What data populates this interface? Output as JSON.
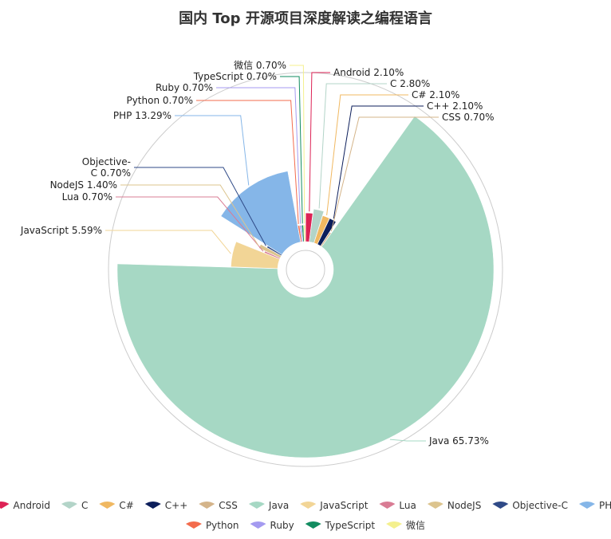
{
  "chart_data": {
    "type": "pie",
    "subtype": "nightingale-rose",
    "title": "国内 Top 开源项目深度解读之编程语言",
    "legend_position": "bottom",
    "slices": [
      {
        "name": "Android",
        "value": 2.1,
        "label": "Android 2.10%",
        "color": "#dd2255"
      },
      {
        "name": "C",
        "value": 2.8,
        "label": "C 2.80%",
        "color": "#b3d4c8"
      },
      {
        "name": "C#",
        "value": 2.1,
        "label": "C# 2.10%",
        "color": "#f0b861"
      },
      {
        "name": "C++",
        "value": 2.1,
        "label": "C++ 2.10%",
        "color": "#0c1e5b"
      },
      {
        "name": "CSS",
        "value": 0.7,
        "label": "CSS 0.70%",
        "color": "#d4b48a"
      },
      {
        "name": "Java",
        "value": 65.73,
        "label": "Java 65.73%",
        "color": "#a6d8c4"
      },
      {
        "name": "JavaScript",
        "value": 5.59,
        "label": "JavaScript 5.59%",
        "color": "#f2d596"
      },
      {
        "name": "Lua",
        "value": 0.7,
        "label": "Lua 0.70%",
        "color": "#d97c94"
      },
      {
        "name": "NodeJS",
        "value": 1.4,
        "label": "NodeJS 1.40%",
        "color": "#dcc48e"
      },
      {
        "name": "Objective-C",
        "value": 0.7,
        "label": [
          "Objective-",
          "C 0.70%"
        ],
        "color": "#2f4a87"
      },
      {
        "name": "PHP",
        "value": 13.29,
        "label": "PHP 13.29%",
        "color": "#85b6e8"
      },
      {
        "name": "Python",
        "value": 0.7,
        "label": "Python 0.70%",
        "color": "#f36b4c"
      },
      {
        "name": "Ruby",
        "value": 0.7,
        "label": "Ruby 0.70%",
        "color": "#a49af0"
      },
      {
        "name": "TypeScript",
        "value": 0.7,
        "label": "TypeScript 0.70%",
        "color": "#128c60"
      },
      {
        "name": "微信",
        "value": 0.7,
        "label": "微信 0.70%",
        "color": "#f4f08e"
      }
    ]
  }
}
